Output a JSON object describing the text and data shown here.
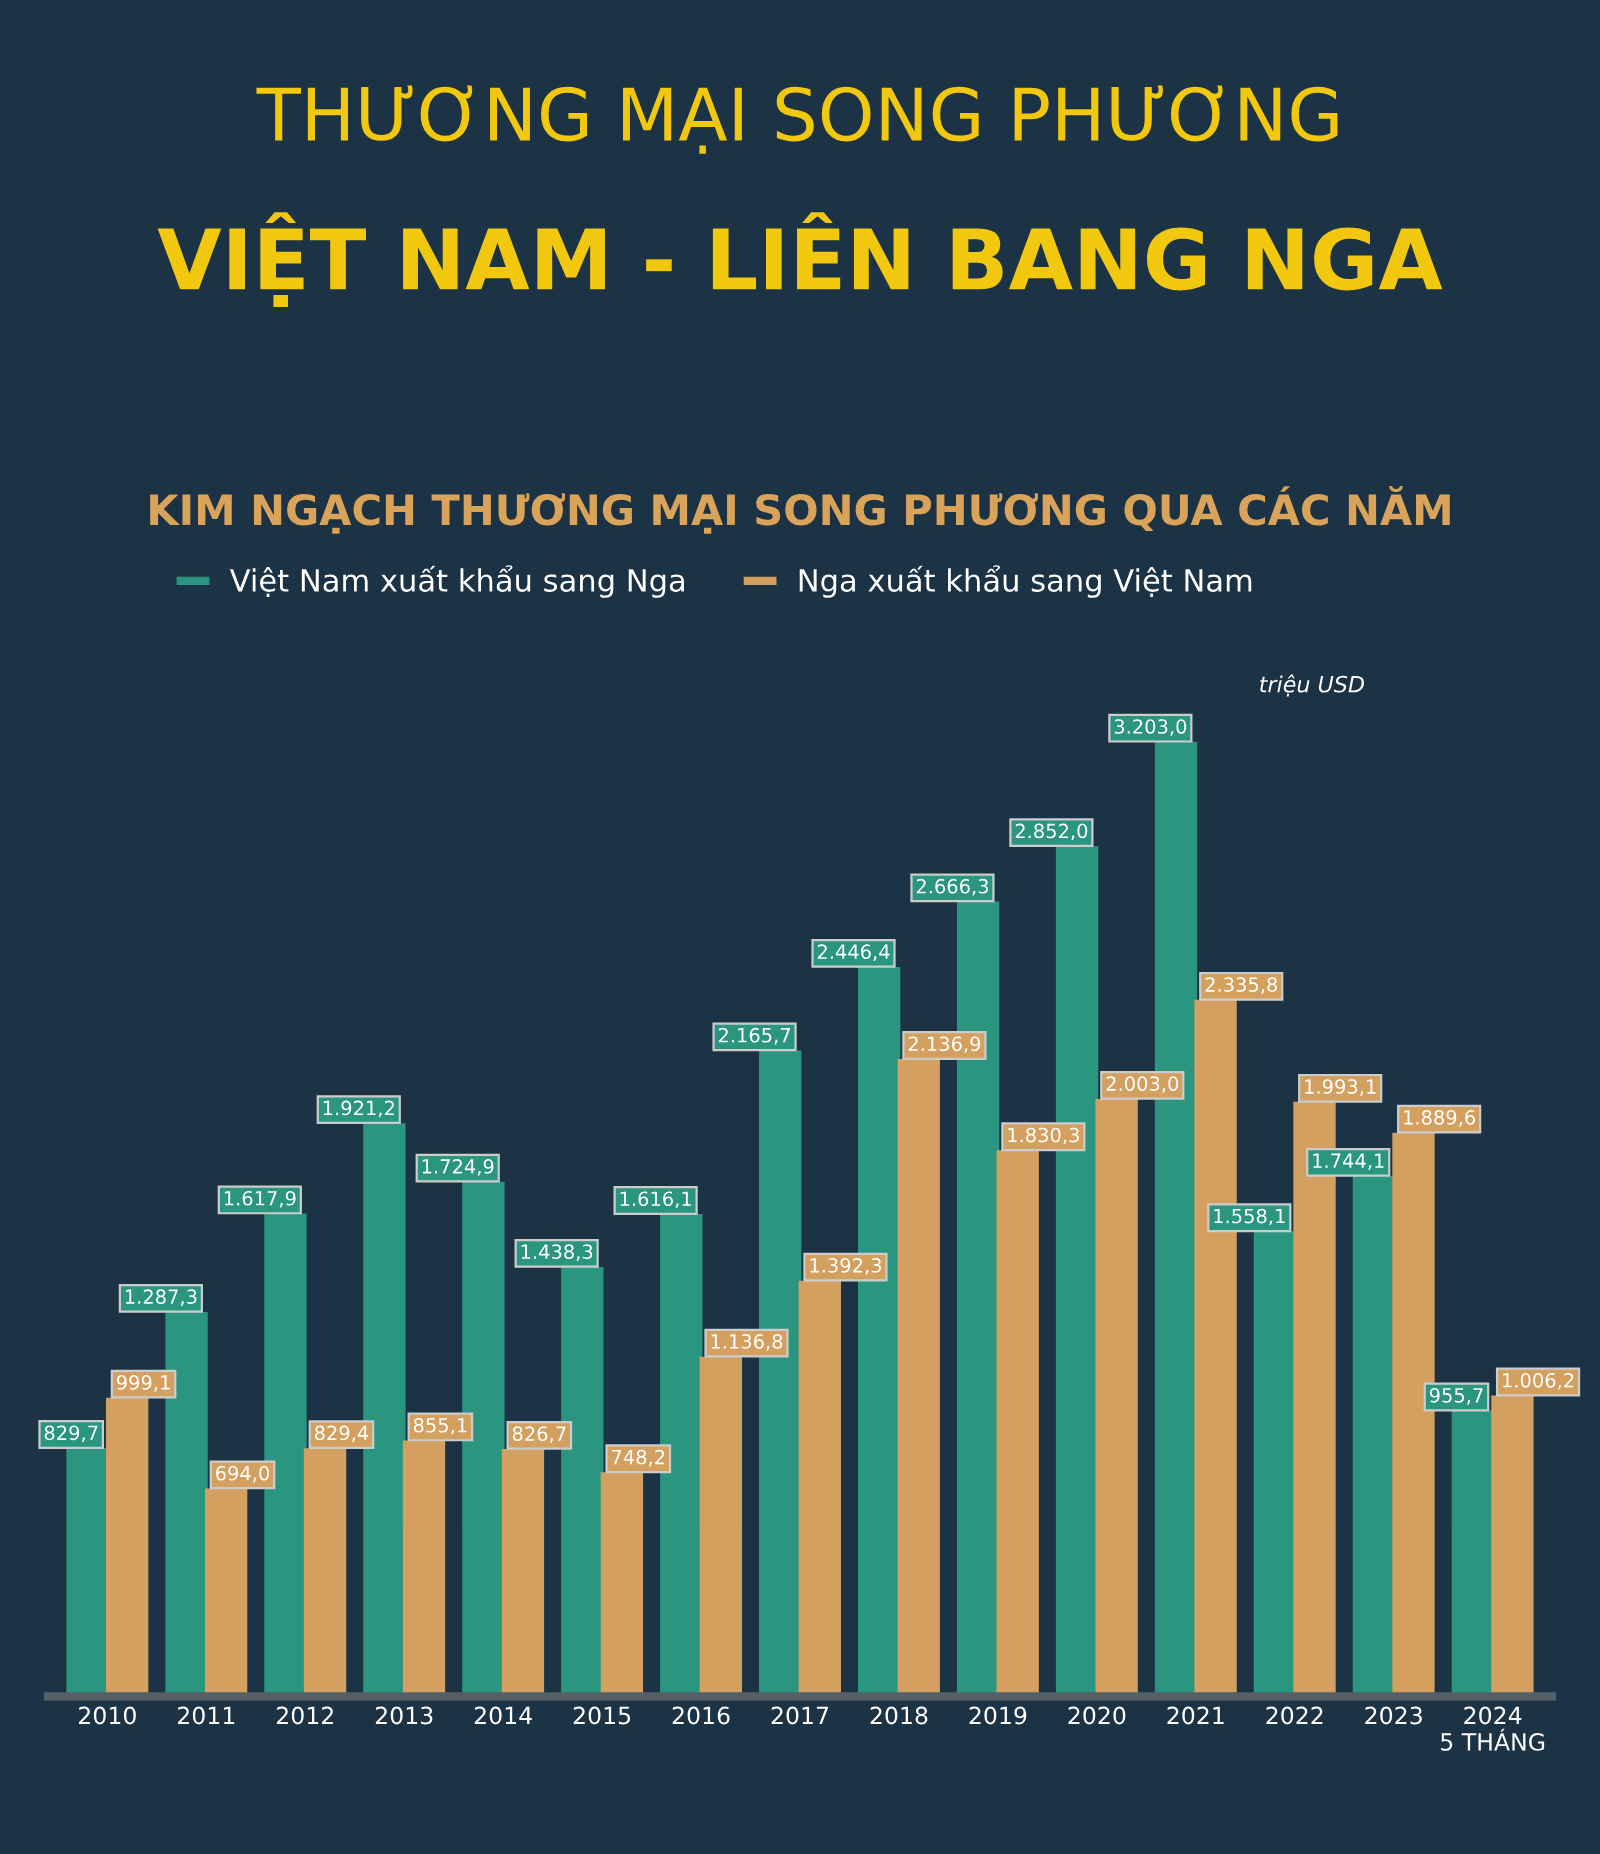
{
  "chart_data": {
    "type": "bar",
    "title": "THƯƠNG MẠI SONG PHƯƠNG\nVIỆT NAM - LIÊN BANG NGA",
    "subtitle": "KIM NGẠCH THƯƠNG MẠI SONG PHƯƠNG QUA CÁC NĂM",
    "annotations": [
      "triệu USD"
    ],
    "categories": [
      "2010",
      "2011",
      "2012",
      "2013",
      "2014",
      "2015",
      "2016",
      "2017",
      "2018",
      "2019",
      "2020",
      "2021",
      "2022",
      "2023",
      "2024\n5 THÁNG"
    ],
    "series": [
      {
        "name": "Việt Nam xuất khẩu sang Nga",
        "color": "#2a9680",
        "values": [
          829.7,
          1287.3,
          1617.9,
          1921.2,
          1724.9,
          1438.3,
          1616.1,
          2165.7,
          2446.4,
          2666.3,
          2852.0,
          3203.0,
          1558.1,
          1744.1,
          955.7
        ],
        "value_labels": [
          "829,7",
          "1.287,3",
          "1.617,9",
          "1.921,2",
          "1.724,9",
          "1.438,3",
          "1.616,1",
          "2.165,7",
          "2.446,4",
          "2.666,3",
          "2.852,0",
          "3.203,0",
          "1.558,1",
          "1.744,1",
          "955,7"
        ]
      },
      {
        "name": "Nga xuất khẩu sang Việt Nam",
        "color": "#d4a060",
        "values": [
          999.1,
          694.0,
          829.4,
          855.1,
          826.7,
          748.2,
          1136.8,
          1392.3,
          2136.9,
          1830.3,
          2003.0,
          2335.8,
          1993.1,
          1889.6,
          1006.2
        ],
        "value_labels": [
          "999,1",
          "694,0",
          "829,4",
          "855,1",
          "826,7",
          "748,2",
          "1.136,8",
          "1.392,3",
          "2.136,9",
          "1.830,3",
          "2.003,0",
          "2.335,8",
          "1.993,1",
          "1.889,6",
          "1.006,2"
        ]
      }
    ],
    "legend": "top left",
    "tick_labels": "x",
    "grid": false
  }
}
